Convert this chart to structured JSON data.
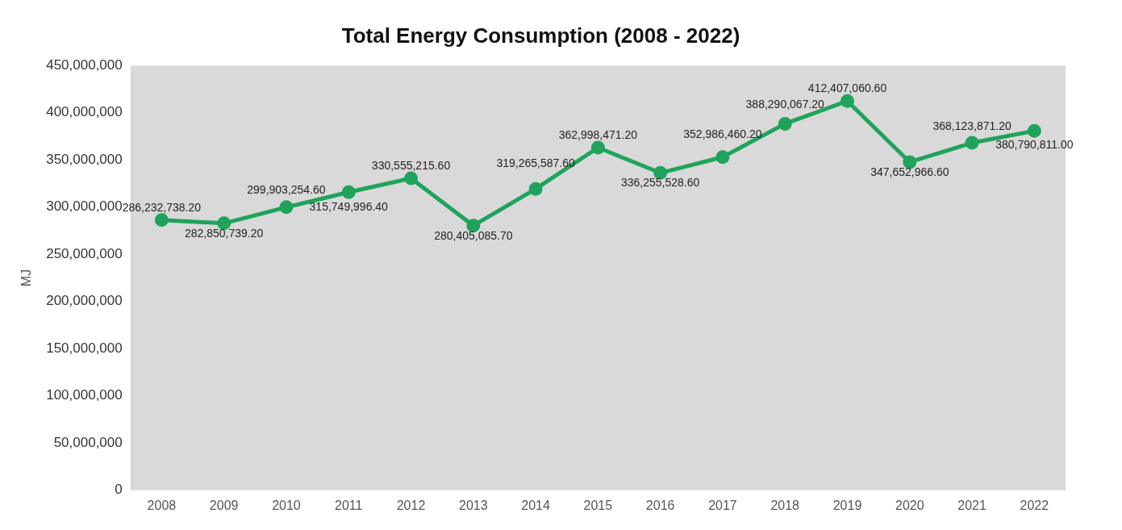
{
  "chart_data": {
    "type": "line",
    "title": "Total Energy Consumption (2008 - 2022)",
    "ylabel": "MJ",
    "categories": [
      "2008",
      "2009",
      "2010",
      "2011",
      "2012",
      "2013",
      "2014",
      "2015",
      "2016",
      "2017",
      "2018",
      "2019",
      "2020",
      "2021",
      "2022"
    ],
    "series": [
      {
        "color": "#1fa35c",
        "values": [
          286232738.2,
          282850739.2,
          299903254.6,
          315749996.4,
          330555215.6,
          280405085.7,
          319265587.6,
          362998471.2,
          336255528.6,
          352986460.2,
          388290067.2,
          412407060.6,
          347652966.6,
          368123871.2,
          380790811.0
        ],
        "value_labels": [
          "286,232,738.20",
          "282,850,739.20",
          "299,903,254.60",
          "315,749,996.40",
          "330,555,215.60",
          "280,405,085.70",
          "319,265,587.60",
          "362,998,471.20",
          "336,255,528.60",
          "352,986,460.20",
          "388,290,067.20",
          "412,407,060.60",
          "347,652,966.60",
          "368,123,871.20",
          "380,790,811.00"
        ]
      }
    ],
    "ylim": [
      0,
      450000000
    ],
    "yticks": [
      0,
      {
        "value": 50000000,
        "label": "50,000,000"
      },
      {
        "value": 100000000,
        "label": "100,000,000"
      },
      {
        "value": 150000000,
        "label": "150,000,000"
      },
      {
        "value": 200000000,
        "label": "200,000,000"
      },
      {
        "value": 250000000,
        "label": "250,000,000"
      },
      {
        "value": 300000000,
        "label": "300,000,000"
      },
      {
        "value": 350000000,
        "label": "350,000,000"
      },
      {
        "value": 400000000,
        "label": "400,000,000"
      },
      {
        "value": 450000000,
        "label": "450,000,000"
      }
    ],
    "grid": false,
    "legend": false,
    "marker": "circle",
    "line_style": "solid"
  }
}
